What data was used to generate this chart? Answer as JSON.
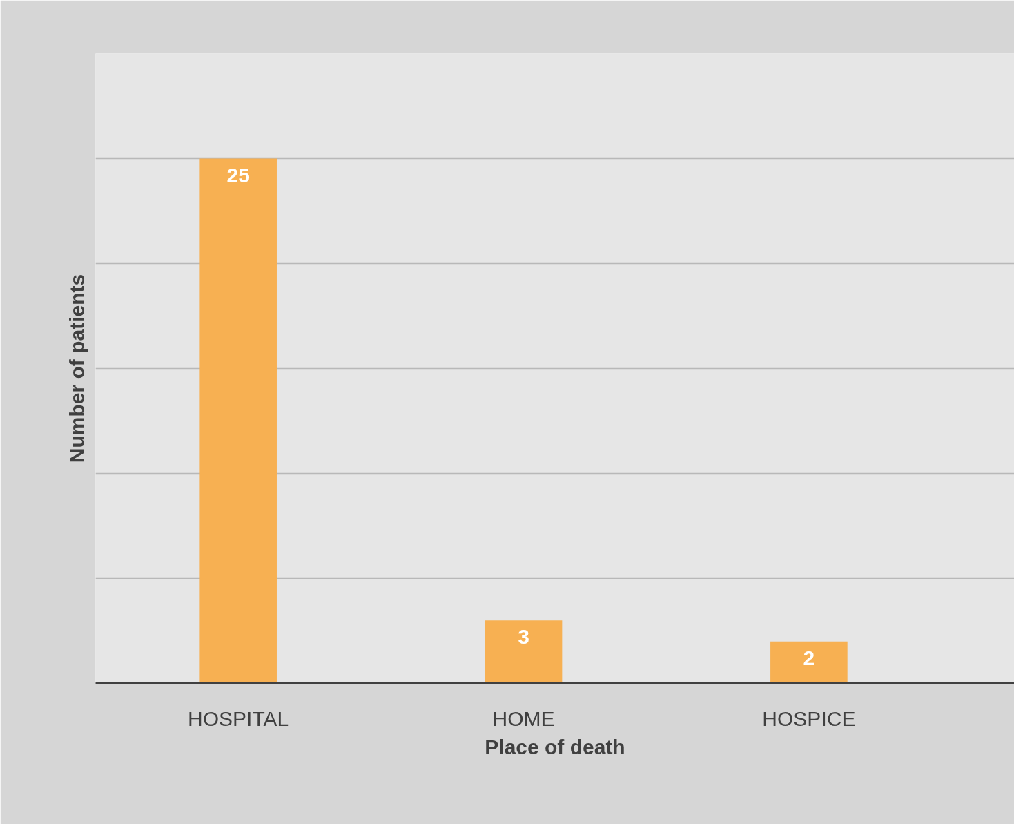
{
  "chart_data": {
    "type": "bar",
    "xlabel": "Place of death",
    "ylabel": "Number of patients",
    "categories": [
      "HOSPITAL",
      "HOME",
      "HOSPICE"
    ],
    "values": [
      25,
      3,
      2
    ],
    "color": "#f7b052",
    "ylim": [
      0,
      30
    ],
    "yticks": [
      {
        "value": 0,
        "label": null
      },
      {
        "value": 5,
        "label": null
      },
      {
        "value": 10,
        "label": null
      },
      {
        "value": 15,
        "label": null
      },
      {
        "value": 20,
        "label": null
      },
      {
        "value": 25,
        "label": null
      },
      {
        "value": 30,
        "label": null
      }
    ],
    "tick_labels": "x",
    "grid": "y",
    "data_labels": true
  }
}
